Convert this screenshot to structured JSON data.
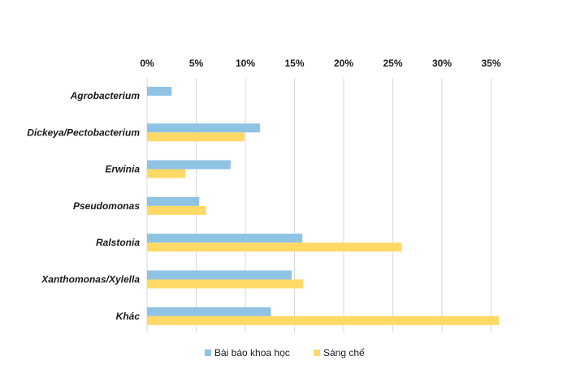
{
  "chart_data": {
    "type": "bar",
    "orientation": "horizontal",
    "categories": [
      "Agrobacterium",
      "Dickeya/Pectobacterium",
      "Erwinia",
      "Pseudomonas",
      "Ralstonia",
      "Xanthomonas/Xylella",
      "Khác"
    ],
    "series": [
      {
        "name": "Bài báo khoa học",
        "color": "#8ec3e3",
        "values": [
          2.5,
          11.5,
          8.5,
          5.3,
          15.8,
          14.7,
          12.6
        ]
      },
      {
        "name": "Sáng chế",
        "color": "#ffd966",
        "values": [
          0,
          9.9,
          3.9,
          6.0,
          25.9,
          15.9,
          35.8
        ]
      }
    ],
    "x_ticks": [
      "0%",
      "5%",
      "10%",
      "15%",
      "20%",
      "25%",
      "30%",
      "35%"
    ],
    "xlim": [
      0,
      36
    ],
    "xaxis_position": "top",
    "grid": true,
    "legend": "bottom"
  }
}
